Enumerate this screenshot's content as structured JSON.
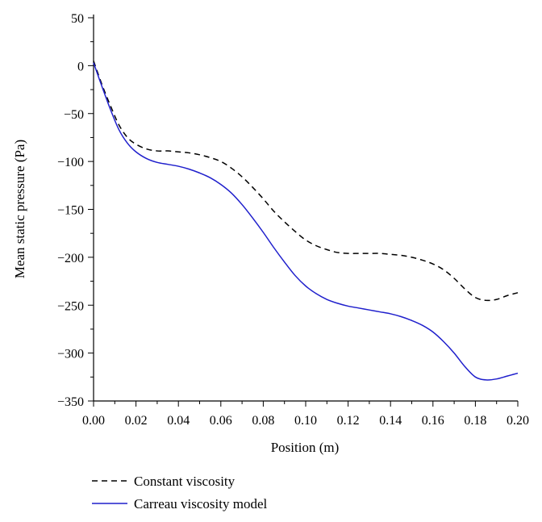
{
  "chart_data": {
    "type": "line",
    "xlabel": "Position (m)",
    "ylabel": "Mean static pressure (Pa)",
    "xlim": [
      0.0,
      0.2
    ],
    "ylim": [
      -350,
      50
    ],
    "x_ticks": [
      0.0,
      0.02,
      0.04,
      0.06,
      0.08,
      0.1,
      0.12,
      0.14,
      0.16,
      0.18,
      0.2
    ],
    "x_tick_labels": [
      "0.00",
      "0.02",
      "0.04",
      "0.06",
      "0.08",
      "0.10",
      "0.12",
      "0.14",
      "0.16",
      "0.18",
      "0.20"
    ],
    "y_ticks": [
      50,
      0,
      -50,
      -100,
      -150,
      -200,
      -250,
      -300,
      -350
    ],
    "y_tick_labels": [
      "50",
      "0",
      "−50",
      "−100",
      "−150",
      "−200",
      "−250",
      "−300",
      "−350"
    ],
    "grid": false,
    "legend_position": "bottom-left-outside",
    "series": [
      {
        "name": "Constant viscosity",
        "color": "#000000",
        "dash": "dashed",
        "x": [
          0.0,
          0.004,
          0.008,
          0.012,
          0.016,
          0.02,
          0.025,
          0.03,
          0.035,
          0.04,
          0.045,
          0.05,
          0.055,
          0.06,
          0.065,
          0.07,
          0.075,
          0.08,
          0.085,
          0.09,
          0.095,
          0.1,
          0.105,
          0.11,
          0.115,
          0.12,
          0.125,
          0.13,
          0.135,
          0.14,
          0.145,
          0.15,
          0.155,
          0.16,
          0.165,
          0.17,
          0.175,
          0.18,
          0.185,
          0.19,
          0.195,
          0.2
        ],
        "y": [
          5,
          -20,
          -42,
          -62,
          -75,
          -82,
          -87,
          -89,
          -89,
          -90,
          -91,
          -93,
          -96,
          -100,
          -107,
          -116,
          -127,
          -139,
          -152,
          -163,
          -173,
          -182,
          -188,
          -192,
          -195,
          -196,
          -196,
          -196,
          -196,
          -197,
          -198,
          -200,
          -203,
          -207,
          -213,
          -222,
          -233,
          -242,
          -245,
          -244,
          -240,
          -237
        ]
      },
      {
        "name": "Carreau viscosity model",
        "color": "#1f1fcc",
        "dash": "solid",
        "x": [
          0.0,
          0.004,
          0.008,
          0.012,
          0.016,
          0.02,
          0.025,
          0.03,
          0.035,
          0.04,
          0.045,
          0.05,
          0.055,
          0.06,
          0.065,
          0.07,
          0.075,
          0.08,
          0.085,
          0.09,
          0.095,
          0.1,
          0.105,
          0.11,
          0.115,
          0.12,
          0.125,
          0.13,
          0.135,
          0.14,
          0.145,
          0.15,
          0.155,
          0.16,
          0.165,
          0.17,
          0.175,
          0.18,
          0.185,
          0.19,
          0.195,
          0.2
        ],
        "y": [
          3,
          -22,
          -46,
          -67,
          -81,
          -90,
          -97,
          -101,
          -103,
          -105,
          -108,
          -112,
          -117,
          -124,
          -133,
          -145,
          -159,
          -174,
          -190,
          -205,
          -219,
          -230,
          -238,
          -244,
          -248,
          -251,
          -253,
          -255,
          -257,
          -259,
          -262,
          -266,
          -271,
          -278,
          -288,
          -300,
          -314,
          -325,
          -328,
          -327,
          -324,
          -321
        ]
      }
    ]
  }
}
